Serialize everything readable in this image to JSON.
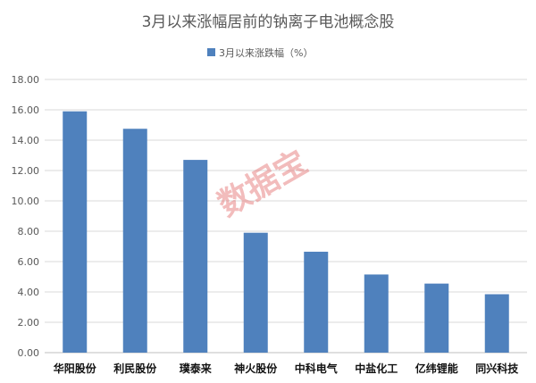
{
  "chart_data": {
    "type": "bar",
    "title": "3月以来涨幅居前的钠离子电池概念股",
    "categories": [
      "华阳股份",
      "利民股份",
      "璞泰来",
      "神火股份",
      "中科电气",
      "中盐化工",
      "亿纬锂能",
      "同兴科技"
    ],
    "series": [
      {
        "name": "3月以来涨跌幅（%）",
        "values": [
          15.9,
          14.75,
          12.7,
          7.9,
          6.65,
          5.15,
          4.55,
          3.85
        ]
      }
    ],
    "ylim": [
      0,
      18
    ],
    "yticks": [
      "0.00",
      "2.00",
      "4.00",
      "6.00",
      "8.00",
      "10.00",
      "12.00",
      "14.00",
      "16.00",
      "18.00"
    ],
    "grid": true,
    "legend_position": "top",
    "bar_color": "#4f81bd",
    "grid_color": "#d9d9d9"
  },
  "watermark": "数据宝"
}
